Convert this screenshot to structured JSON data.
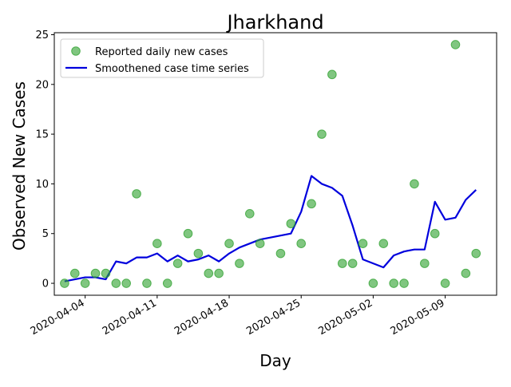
{
  "chart_data": {
    "type": "line",
    "title": "Jharkhand",
    "xlabel": "Day",
    "ylabel": "Observed New Cases",
    "ylim": [
      -1.2,
      25.2
    ],
    "xlim": [
      "2020-04-01",
      "2020-05-14"
    ],
    "y_ticks": [
      0,
      5,
      10,
      15,
      20,
      25
    ],
    "x_ticks": [
      "2020-04-04",
      "2020-04-11",
      "2020-04-18",
      "2020-04-25",
      "2020-05-02",
      "2020-05-09"
    ],
    "grid": false,
    "legend": {
      "position": "top-left",
      "entries": [
        "Reported daily new cases",
        "Smoothened case time series"
      ]
    },
    "colors": {
      "reported": "#2ca02c",
      "smoothened": "#0000dd"
    },
    "dates": [
      "2020-04-02",
      "2020-04-03",
      "2020-04-04",
      "2020-04-05",
      "2020-04-06",
      "2020-04-07",
      "2020-04-08",
      "2020-04-09",
      "2020-04-10",
      "2020-04-11",
      "2020-04-12",
      "2020-04-13",
      "2020-04-14",
      "2020-04-15",
      "2020-04-16",
      "2020-04-17",
      "2020-04-18",
      "2020-04-19",
      "2020-04-20",
      "2020-04-21",
      "2020-04-22",
      "2020-04-23",
      "2020-04-24",
      "2020-04-25",
      "2020-04-26",
      "2020-04-27",
      "2020-04-28",
      "2020-04-29",
      "2020-04-30",
      "2020-05-01",
      "2020-05-02",
      "2020-05-03",
      "2020-05-04",
      "2020-05-05",
      "2020-05-06",
      "2020-05-07",
      "2020-05-08",
      "2020-05-09",
      "2020-05-10",
      "2020-05-11",
      "2020-05-12"
    ],
    "series": [
      {
        "name": "Reported daily new cases",
        "style": "scatter",
        "values": [
          0,
          1,
          0,
          1,
          1,
          0,
          0,
          9,
          0,
          4,
          0,
          2,
          5,
          3,
          1,
          1,
          4,
          2,
          7,
          4,
          null,
          3,
          6,
          4,
          8,
          15,
          21,
          2,
          2,
          4,
          0,
          4,
          0,
          0,
          10,
          2,
          5,
          0,
          24,
          1,
          3
        ]
      },
      {
        "name": "Smoothened case time series",
        "style": "line",
        "values": [
          0.2,
          0.4,
          0.6,
          0.6,
          0.4,
          2.2,
          2.0,
          2.6,
          2.6,
          3.0,
          2.2,
          2.8,
          2.2,
          2.4,
          2.8,
          2.2,
          3.0,
          3.6,
          4.0,
          4.4,
          4.6,
          4.8,
          5.0,
          7.2,
          10.8,
          10.0,
          9.6,
          8.8,
          5.8,
          2.4,
          2.0,
          1.6,
          2.8,
          3.2,
          3.4,
          3.4,
          8.2,
          6.4,
          6.6,
          8.4,
          9.4
        ]
      }
    ]
  }
}
